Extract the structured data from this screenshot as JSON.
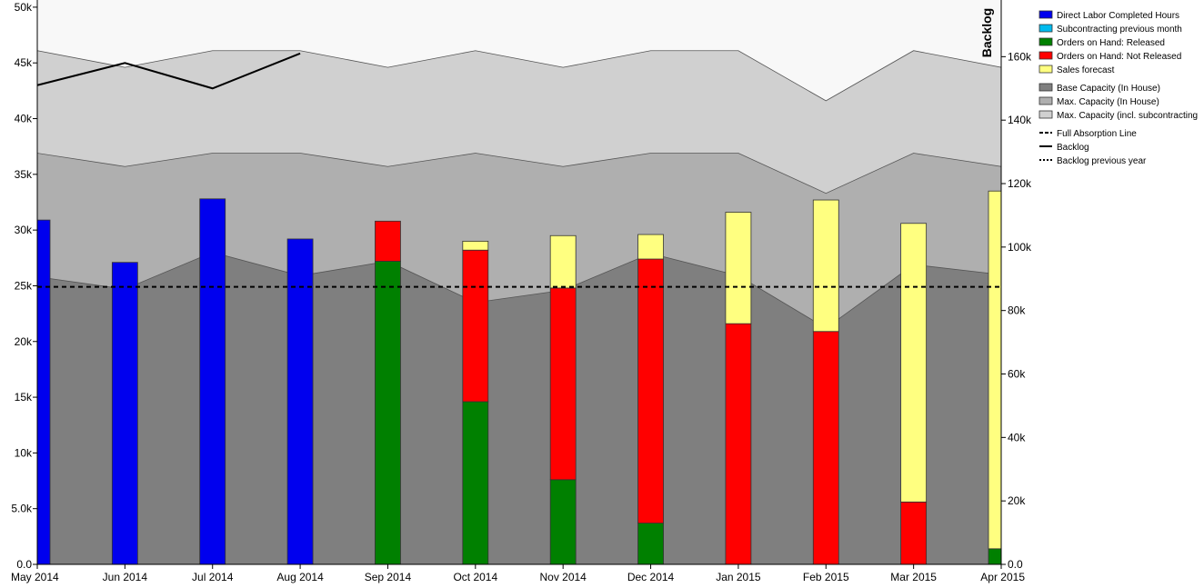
{
  "chart_data": {
    "type": "bar",
    "categories": [
      "May 2014",
      "Jun 2014",
      "Jul 2014",
      "Aug 2014",
      "Sep 2014",
      "Oct 2014",
      "Nov 2014",
      "Dec 2014",
      "Jan 2015",
      "Feb 2015",
      "Mar 2015",
      "Apr 2015"
    ],
    "ylim": [
      0,
      50400
    ],
    "y2label": "Backlog",
    "y2lim": [
      0,
      177000
    ],
    "yticks": [
      0,
      5000,
      10000,
      15000,
      20000,
      25000,
      30000,
      35000,
      40000,
      45000,
      50000
    ],
    "ytick_labels": [
      "0.0",
      "5.0k",
      "10k",
      "15k",
      "20k",
      "25k",
      "30k",
      "35k",
      "40k",
      "45k",
      "50k"
    ],
    "y2ticks": [
      0,
      20000,
      40000,
      60000,
      80000,
      100000,
      120000,
      140000,
      160000
    ],
    "y2tick_labels": [
      "0.0",
      "20k",
      "40k",
      "60k",
      "80k",
      "100k",
      "120k",
      "140k",
      "160k"
    ],
    "grid": false,
    "legend_position": "top-right",
    "stacked_series": [
      {
        "name": "Direct Labor Completed Hours",
        "color": "#0000ee",
        "values": [
          30900,
          27100,
          32800,
          29200,
          0,
          0,
          0,
          0,
          0,
          0,
          0,
          0
        ]
      },
      {
        "name": "Subcontracting previous month",
        "color": "#00bbee",
        "values": [
          0,
          0,
          0,
          0,
          0,
          0,
          0,
          0,
          0,
          0,
          0,
          0
        ]
      },
      {
        "name": "Orders on Hand: Released",
        "color": "#008000",
        "values": [
          0,
          0,
          0,
          0,
          27200,
          14600,
          7600,
          3700,
          0,
          0,
          0,
          1400
        ]
      },
      {
        "name": "Orders on Hand: Not Released",
        "color": "#ff0000",
        "values": [
          0,
          0,
          0,
          0,
          3600,
          13600,
          17200,
          23700,
          21600,
          20900,
          5600,
          0
        ]
      },
      {
        "name": "Sales forecast",
        "color": "#ffff80",
        "values": [
          0,
          0,
          0,
          0,
          0,
          800,
          4700,
          2200,
          10000,
          11800,
          25000,
          32100
        ]
      }
    ],
    "capacity_series": [
      {
        "name": "Base Capacity (In House)",
        "color": "#7f7f7f",
        "values": [
          25800,
          24700,
          28000,
          25900,
          27200,
          23500,
          24600,
          27900,
          25900,
          21200,
          26900,
          26000
        ]
      },
      {
        "name": "Max. Capacity (In House)",
        "color": "#afafaf",
        "values": [
          36900,
          35700,
          36900,
          36900,
          35700,
          36900,
          35700,
          36900,
          36900,
          33300,
          36900,
          35700
        ]
      },
      {
        "name": "Max. Capacity (incl. subcontracting",
        "color": "#d0d0d0",
        "values": [
          46100,
          44600,
          46100,
          46100,
          44600,
          46100,
          44600,
          46100,
          46100,
          41600,
          46100,
          44600
        ]
      }
    ],
    "full_absorption_line": {
      "name": "Full Absorption Line",
      "value": 24900
    },
    "backlog": {
      "name": "Backlog",
      "axis": "right",
      "values": [
        151000,
        158000,
        150000,
        161000
      ]
    },
    "backlog_previous_year": {
      "name": "Backlog previous year",
      "axis": "right",
      "values": []
    }
  }
}
